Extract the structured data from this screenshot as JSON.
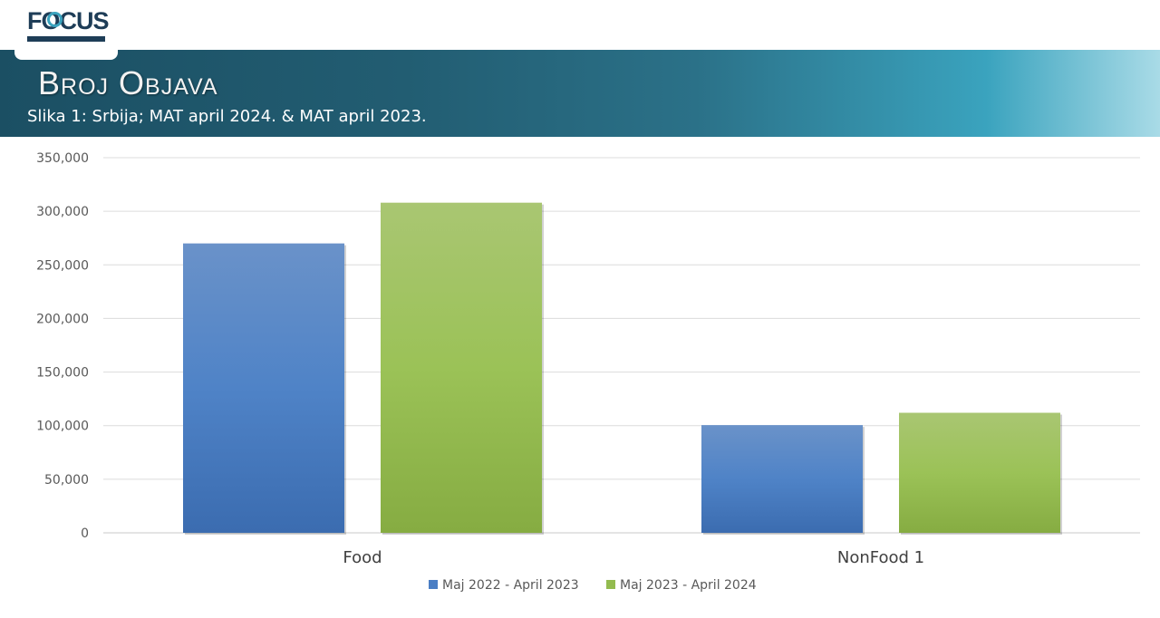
{
  "header": {
    "logo_text": "FOCUS",
    "title": "Broj Objava",
    "subtitle": "Slika 1: Srbija; MAT april 2024. & MAT april 2023."
  },
  "chart_data": {
    "type": "bar",
    "categories": [
      "Food",
      "NonFood 1"
    ],
    "series": [
      {
        "name": "Maj 2022 - April 2023",
        "values": [
          270000,
          100500
        ],
        "color": "#4a7ec4"
      },
      {
        "name": "Maj 2023 - April 2024",
        "values": [
          308000,
          112000
        ],
        "color": "#93bb4f"
      }
    ],
    "ylim": [
      0,
      350000
    ],
    "yticks": [
      "0",
      "50,000",
      "100,000",
      "150,000",
      "200,000",
      "250,000",
      "300,000",
      "350,000"
    ],
    "grid": true,
    "legend_position": "bottom"
  }
}
